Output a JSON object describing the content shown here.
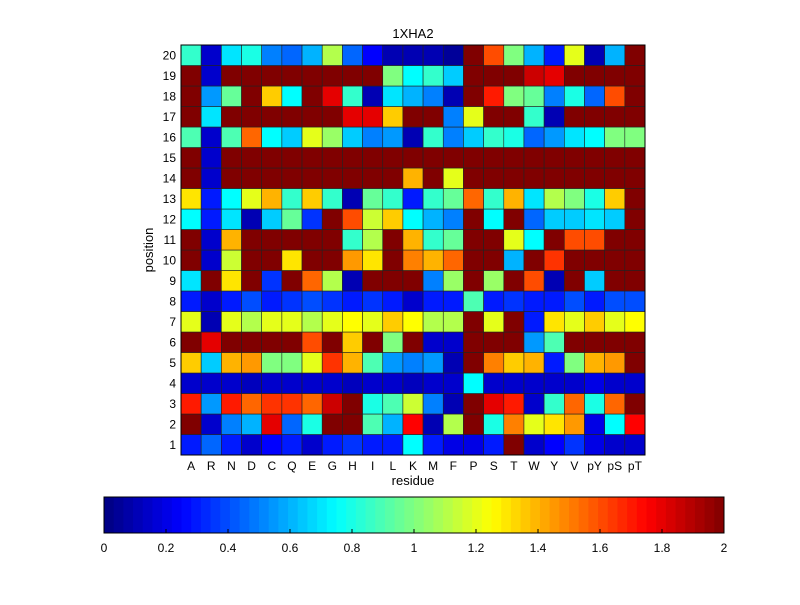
{
  "chart_data": {
    "type": "heatmap",
    "title": "1XHA2",
    "xlabel": "residue",
    "ylabel": "position",
    "colormap": "jet",
    "clim": [
      0,
      2
    ],
    "colorbar_ticks": [
      "0",
      "0.2",
      "0.4",
      "0.6",
      "0.8",
      "1",
      "1.2",
      "1.4",
      "1.6",
      "1.8",
      "2"
    ],
    "colorbar_placement": "bottom",
    "x_categories": [
      "A",
      "R",
      "N",
      "D",
      "C",
      "Q",
      "E",
      "G",
      "H",
      "I",
      "L",
      "K",
      "M",
      "F",
      "P",
      "S",
      "T",
      "W",
      "Y",
      "V",
      "pY",
      "pS",
      "pT"
    ],
    "y_categories": [
      "1",
      "2",
      "3",
      "4",
      "5",
      "6",
      "7",
      "8",
      "9",
      "10",
      "11",
      "12",
      "13",
      "14",
      "15",
      "16",
      "17",
      "18",
      "19",
      "20"
    ],
    "rows": [
      [
        0.3,
        0.45,
        0.3,
        0.15,
        0.25,
        0.3,
        0.15,
        0.3,
        0.35,
        0.3,
        0.3,
        0.75,
        0.3,
        0.2,
        0.2,
        0.3,
        2,
        0.15,
        0.25,
        0.35,
        0.2,
        0.15,
        0.15
      ],
      [
        2,
        0.15,
        0.5,
        0.6,
        1.8,
        0.45,
        0.8,
        2,
        2,
        0.9,
        0.6,
        1.75,
        0.1,
        1.1,
        2,
        0.8,
        1.5,
        1.2,
        1.3,
        1.45,
        0.2,
        0.75,
        1.75
      ],
      [
        1.7,
        0.55,
        1.7,
        1.55,
        1.65,
        1.65,
        1.55,
        1.85,
        2,
        0.8,
        0.9,
        1.15,
        0.5,
        0.1,
        2,
        1.8,
        1.7,
        0.15,
        0.85,
        1.55,
        0.8,
        1.55,
        2
      ],
      [
        0.15,
        0.15,
        0.15,
        0.12,
        0.15,
        0.15,
        0.15,
        0.15,
        0.12,
        0.15,
        0.15,
        0.12,
        0.15,
        0.15,
        0.75,
        0.15,
        0.15,
        0.15,
        0.15,
        0.15,
        0.2,
        0.15,
        0.15
      ],
      [
        1.35,
        0.65,
        1.4,
        1.45,
        1.0,
        1.0,
        1.2,
        1.65,
        1.4,
        0.9,
        0.55,
        0.5,
        0.55,
        0.1,
        2,
        1.5,
        1.35,
        1.4,
        0.3,
        1.0,
        1.4,
        1.45,
        2
      ],
      [
        2,
        1.8,
        2,
        2,
        2,
        2,
        1.6,
        2,
        1.35,
        2,
        1.0,
        2,
        0.15,
        0.15,
        2,
        2,
        2,
        0.55,
        0.9,
        2,
        2,
        2,
        2
      ],
      [
        1.2,
        0.1,
        1.2,
        1.1,
        1.2,
        1.2,
        1.1,
        1.2,
        1.25,
        1.2,
        1.35,
        1.25,
        1.1,
        1.1,
        2,
        1.2,
        2,
        0.3,
        1.3,
        1.2,
        1.35,
        1.2,
        1.25
      ],
      [
        0.3,
        0.15,
        0.3,
        0.4,
        0.3,
        0.35,
        0.4,
        0.35,
        0.3,
        0.35,
        0.3,
        0.15,
        0.3,
        0.3,
        0.9,
        0.3,
        0.35,
        0.3,
        0.3,
        0.4,
        0.3,
        0.4,
        0.4
      ],
      [
        0.7,
        2,
        1.3,
        2,
        0.35,
        2,
        1.55,
        1.1,
        0.1,
        2,
        2,
        2,
        0.5,
        1.05,
        2,
        1.05,
        2,
        1.6,
        0.1,
        2,
        0.65,
        2,
        2
      ],
      [
        2,
        0.15,
        1.15,
        2,
        2,
        1.3,
        2,
        2,
        1.45,
        1.3,
        2,
        1.5,
        1.4,
        1.55,
        2,
        2,
        0.6,
        2,
        1.65,
        2,
        2,
        2,
        2
      ],
      [
        2,
        0.15,
        1.4,
        2,
        2,
        2,
        2,
        2,
        0.85,
        1.1,
        2,
        1.4,
        0.85,
        0.95,
        2,
        2,
        1.2,
        0.75,
        2,
        1.6,
        1.6,
        2,
        2
      ],
      [
        0.75,
        0.3,
        0.7,
        0.1,
        0.65,
        0.95,
        0.35,
        2,
        1.6,
        1.15,
        1.35,
        0.75,
        0.6,
        0.5,
        2,
        0.75,
        2,
        0.45,
        0.65,
        0.65,
        0.7,
        0.65,
        2
      ],
      [
        1.3,
        0.3,
        0.75,
        1.2,
        1.4,
        0.85,
        1.35,
        0.85,
        0.1,
        0.95,
        0.85,
        0.3,
        0.85,
        0.95,
        1.55,
        0.85,
        1.4,
        0.7,
        1.1,
        1.0,
        0.8,
        1.35,
        2
      ],
      [
        2,
        0.15,
        2,
        2,
        2,
        2,
        2,
        2,
        2,
        2,
        2,
        1.4,
        2,
        1.2,
        2,
        2,
        2,
        2,
        2,
        2,
        2,
        2,
        2
      ],
      [
        2,
        0.15,
        2,
        2,
        2,
        2,
        2,
        2,
        2,
        2,
        2,
        2,
        2,
        2,
        2,
        2,
        2,
        2,
        2,
        2,
        2,
        2,
        2
      ],
      [
        0.9,
        0.15,
        0.9,
        1.55,
        0.75,
        0.65,
        1.2,
        1.05,
        0.65,
        0.5,
        0.55,
        0.1,
        0.85,
        0.5,
        0.65,
        0.85,
        0.8,
        0.45,
        0.55,
        0.7,
        0.75,
        1.0,
        1.0
      ],
      [
        2,
        0.7,
        2,
        2,
        2,
        2,
        2,
        2,
        1.8,
        1.8,
        1.35,
        2,
        2,
        0.5,
        1.2,
        2,
        2,
        0.85,
        0.1,
        2,
        2,
        2,
        2
      ],
      [
        2,
        0.55,
        0.95,
        2,
        1.35,
        0.75,
        2,
        1.8,
        0.85,
        0.1,
        0.7,
        0.6,
        0.5,
        0.1,
        2,
        1.7,
        1.0,
        0.95,
        0.5,
        0.8,
        0.45,
        1.6,
        2
      ],
      [
        2,
        0.15,
        2,
        2,
        2,
        2,
        2,
        2,
        2,
        2,
        1.0,
        0.75,
        0.85,
        0.65,
        2,
        2,
        2,
        1.85,
        1.8,
        2,
        2,
        2,
        2
      ],
      [
        0.85,
        0.15,
        0.7,
        0.8,
        0.5,
        0.45,
        0.6,
        1.1,
        0.45,
        0.25,
        0.1,
        0.1,
        0.1,
        0.05,
        2,
        1.6,
        1.0,
        0.6,
        0.3,
        1.2,
        0.1,
        0.6,
        2
      ]
    ]
  }
}
